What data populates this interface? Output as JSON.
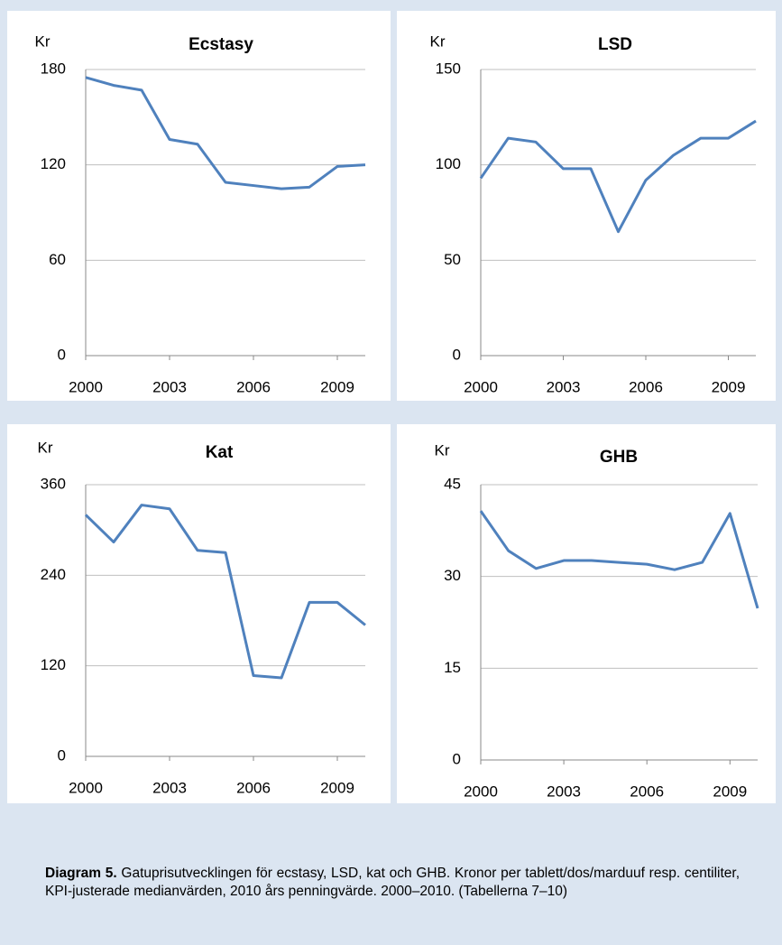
{
  "chart_data": [
    {
      "type": "line",
      "title": "Ecstasy",
      "y_label": "Kr",
      "x": [
        2000,
        2001,
        2002,
        2003,
        2004,
        2005,
        2006,
        2007,
        2008,
        2009,
        2010
      ],
      "values": [
        175,
        170,
        167,
        136,
        133,
        109,
        107,
        105,
        106,
        119,
        120
      ],
      "color": "#4f81bd",
      "xlim": [
        2000,
        2010
      ],
      "xticks": [
        2000,
        2003,
        2006,
        2009
      ],
      "ylim": [
        0,
        180
      ],
      "yticks": [
        0,
        60,
        120,
        180
      ],
      "grid": true
    },
    {
      "type": "line",
      "title": "LSD",
      "y_label": "Kr",
      "x": [
        2000,
        2001,
        2002,
        2003,
        2004,
        2005,
        2006,
        2007,
        2008,
        2009,
        2010
      ],
      "values": [
        93,
        114,
        112,
        98,
        98,
        65,
        92,
        105,
        114,
        114,
        123
      ],
      "color": "#4f81bd",
      "xlim": [
        2000,
        2010
      ],
      "xticks": [
        2000,
        2003,
        2006,
        2009
      ],
      "ylim": [
        0,
        150
      ],
      "yticks": [
        0,
        50,
        100,
        150
      ],
      "grid": true
    },
    {
      "type": "line",
      "title": "Kat",
      "y_label": "Kr",
      "x": [
        2000,
        2001,
        2002,
        2003,
        2004,
        2005,
        2006,
        2007,
        2008,
        2009,
        2010
      ],
      "values": [
        320,
        284,
        333,
        328,
        273,
        270,
        107,
        104,
        204,
        204,
        174
      ],
      "color": "#4f81bd",
      "xlim": [
        2000,
        2010
      ],
      "xticks": [
        2000,
        2003,
        2006,
        2009
      ],
      "ylim": [
        0,
        360
      ],
      "yticks": [
        0,
        120,
        240,
        360
      ],
      "grid": true
    },
    {
      "type": "line",
      "title": "GHB",
      "y_label": "Kr",
      "x": [
        2000,
        2001,
        2002,
        2003,
        2004,
        2005,
        2006,
        2007,
        2008,
        2009,
        2010
      ],
      "values": [
        40.7,
        34.2,
        31.3,
        32.6,
        32.6,
        32.3,
        32,
        31.1,
        32.3,
        40.3,
        24.8
      ],
      "color": "#4f81bd",
      "xlim": [
        2000,
        2010
      ],
      "xticks": [
        2000,
        2003,
        2006,
        2009
      ],
      "ylim": [
        0,
        45
      ],
      "yticks": [
        0,
        15,
        30,
        45
      ],
      "grid": true
    }
  ],
  "caption": {
    "label": "Diagram 5.",
    "text": "Gatuprisutvecklingen för ecstasy, LSD, kat och GHB. Kronor per tablett/dos/marduuf resp. centiliter, KPI-justerade medianvärden, 2010 års penningvärde. 2000–2010. (Tabellerna 7–10)"
  }
}
